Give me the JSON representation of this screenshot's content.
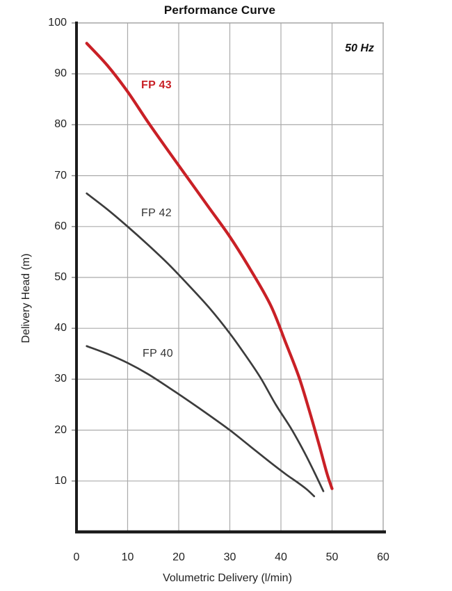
{
  "chart": {
    "title": "Performance Curve",
    "frequency_label": "50 Hz"
  },
  "chart_data": {
    "type": "line",
    "title": "Performance Curve",
    "xlabel": "Volumetric Delivery (l/min)",
    "ylabel": "Delivery Head (m)",
    "annotation": "50 Hz",
    "xlim": [
      0,
      60
    ],
    "ylim": [
      0,
      100
    ],
    "x_ticks": [
      0,
      10,
      20,
      30,
      40,
      50,
      60
    ],
    "y_ticks": [
      10,
      20,
      30,
      40,
      50,
      60,
      70,
      80,
      90,
      100
    ],
    "grid": true,
    "legend_position": "inline-labels",
    "colors": {
      "grid": "#ababab",
      "border": "#a5a5a5",
      "axis": "#1c1c1c",
      "tick": "#8a8a8a",
      "accent_red": "#c92026",
      "curve_dark": "#3c3c3c"
    },
    "series": [
      {
        "name": "FP 43",
        "color": "#c92026",
        "width": 4.2,
        "points": [
          [
            2,
            96
          ],
          [
            6,
            91.7
          ],
          [
            10,
            86.5
          ],
          [
            14,
            80.5
          ],
          [
            18,
            74.8
          ],
          [
            22,
            69.2
          ],
          [
            26,
            63.6
          ],
          [
            30,
            58
          ],
          [
            34,
            51.6
          ],
          [
            38,
            44.5
          ],
          [
            41,
            37
          ],
          [
            43.5,
            30.5
          ],
          [
            45.5,
            24
          ],
          [
            47.5,
            17
          ],
          [
            49,
            11.5
          ],
          [
            50,
            8.5
          ]
        ]
      },
      {
        "name": "FP 42",
        "color": "#3c3c3c",
        "width": 2.7,
        "points": [
          [
            2,
            66.5
          ],
          [
            6,
            63.4
          ],
          [
            10,
            60
          ],
          [
            14,
            56.4
          ],
          [
            18,
            52.6
          ],
          [
            22,
            48.4
          ],
          [
            26,
            44
          ],
          [
            30,
            39
          ],
          [
            33,
            34.8
          ],
          [
            36,
            30.3
          ],
          [
            39,
            25
          ],
          [
            42,
            20.3
          ],
          [
            44.5,
            15.8
          ],
          [
            46.5,
            11.8
          ],
          [
            48.3,
            8
          ]
        ]
      },
      {
        "name": "FP 40",
        "color": "#3c3c3c",
        "width": 2.7,
        "points": [
          [
            2,
            36.5
          ],
          [
            6,
            35
          ],
          [
            10,
            33.2
          ],
          [
            14,
            31
          ],
          [
            18,
            28.4
          ],
          [
            22,
            25.7
          ],
          [
            26,
            22.9
          ],
          [
            30,
            20
          ],
          [
            34,
            16.8
          ],
          [
            38,
            13.6
          ],
          [
            41,
            11.3
          ],
          [
            43,
            9.9
          ],
          [
            45,
            8.4
          ],
          [
            46.5,
            7
          ]
        ]
      }
    ]
  }
}
